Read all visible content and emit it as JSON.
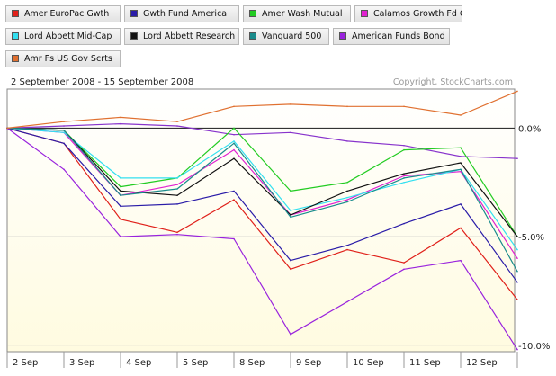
{
  "chart_data": {
    "type": "line",
    "date_range": "2 September 2008 - 15 September 2008",
    "copyright": "Copyright, StockCharts.com",
    "categories": [
      "2 Sep",
      "3 Sep",
      "4 Sep",
      "5 Sep",
      "8 Sep",
      "9 Sep",
      "10 Sep",
      "11 Sep",
      "12 Sep",
      "15 Sep"
    ],
    "x_tick_labels": [
      "2 Sep",
      "3 Sep",
      "4 Sep",
      "5 Sep",
      "8 Sep",
      "9 Sep",
      "10 Sep",
      "11 Sep",
      "12 Sep"
    ],
    "y_ticks": [
      {
        "value": 0,
        "label": "0.0%"
      },
      {
        "value": -5,
        "label": "-5.0%"
      },
      {
        "value": -10,
        "label": "-10.0%"
      }
    ],
    "ylim": [
      -10.3,
      1.8
    ],
    "zero_line_color": "#333333",
    "background_gradient": [
      "#ffffff",
      "#fffbe0"
    ],
    "series": [
      {
        "name": "Amer EuroPac Gwth",
        "color": "#e0201a",
        "values": [
          0,
          -0.7,
          -4.2,
          -4.8,
          -3.3,
          -6.5,
          -5.6,
          -6.2,
          -4.6,
          -7.9
        ]
      },
      {
        "name": "Gwth Fund America",
        "color": "#2a1ca8",
        "values": [
          0,
          -0.7,
          -3.6,
          -3.5,
          -2.9,
          -6.1,
          -5.4,
          -4.4,
          -3.5,
          -7.1
        ]
      },
      {
        "name": "Amer Wash Mutual",
        "color": "#22cc22",
        "values": [
          0,
          -0.1,
          -2.7,
          -2.3,
          0.0,
          -2.9,
          -2.5,
          -1.0,
          -0.9,
          -5.0
        ]
      },
      {
        "name": "Calamos Growth Fd Cl",
        "color": "#e020d0",
        "values": [
          0,
          -0.2,
          -3.1,
          -2.6,
          -1.0,
          -4.0,
          -3.3,
          -2.2,
          -2.0,
          -6.0
        ]
      },
      {
        "name": "Lord Abbett Mid-Cap",
        "color": "#33e0f0",
        "values": [
          0,
          -0.2,
          -2.3,
          -2.3,
          -0.6,
          -3.8,
          -3.2,
          -2.5,
          -1.9,
          -5.6
        ]
      },
      {
        "name": "Lord Abbett Research",
        "color": "#111111",
        "values": [
          0,
          -0.1,
          -2.9,
          -3.1,
          -1.4,
          -4.0,
          -2.9,
          -2.1,
          -1.6,
          -5.0
        ]
      },
      {
        "name": "Vanguard 500",
        "color": "#1a8c8c",
        "values": [
          0,
          -0.1,
          -3.1,
          -2.8,
          -0.7,
          -4.1,
          -3.4,
          -2.3,
          -1.9,
          -6.6
        ]
      },
      {
        "name": "American Funds Bond",
        "color": "#9922dd",
        "values": [
          0,
          -1.9,
          -5.0,
          -4.9,
          -5.1,
          -9.5,
          -8.0,
          -6.5,
          -6.1,
          -10.2
        ]
      },
      {
        "name": "Amr Fs US Gov Scrts",
        "color": "#e07030",
        "values": [
          0,
          0.3,
          0.5,
          0.3,
          1.0,
          1.1,
          1.0,
          1.0,
          0.6,
          1.7
        ]
      }
    ],
    "extra_series": [
      {
        "name": "American Funds Bond",
        "color": "#8833cc",
        "values": [
          0,
          0.1,
          0.2,
          0.1,
          -0.3,
          -0.2,
          -0.6,
          -0.8,
          -1.3,
          -1.4
        ]
      }
    ]
  }
}
